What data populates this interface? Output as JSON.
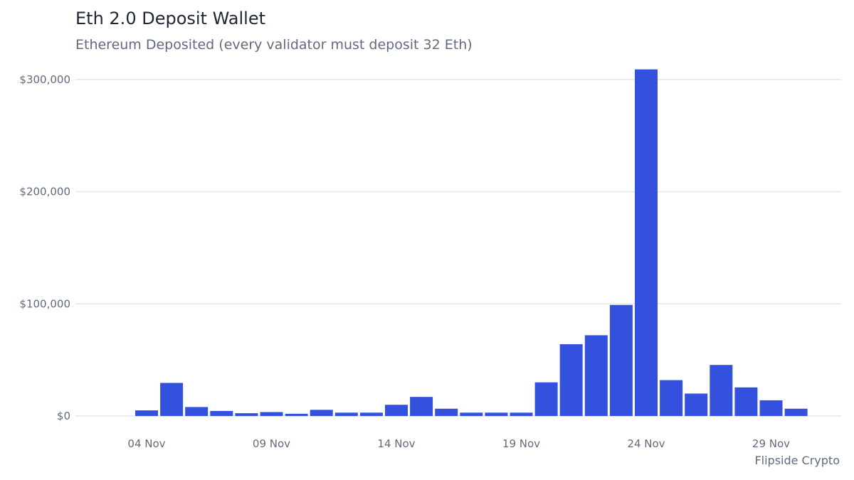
{
  "title": "Eth 2.0 Deposit Wallet",
  "subtitle": "Ethereum Deposited (every validator must deposit 32 Eth)",
  "credit": "Flipside Crypto",
  "colors": {
    "bar": "#3351dc",
    "grid": "#e4e7ef",
    "text": "#5f6b7e",
    "title": "#1f2633"
  },
  "chart_data": {
    "type": "bar",
    "categories": [
      "2020-11-04",
      "2020-11-05",
      "2020-11-06",
      "2020-11-07",
      "2020-11-08",
      "2020-11-09",
      "2020-11-10",
      "2020-11-11",
      "2020-11-12",
      "2020-11-13",
      "2020-11-14",
      "2020-11-15",
      "2020-11-16",
      "2020-11-17",
      "2020-11-18",
      "2020-11-19",
      "2020-11-20",
      "2020-11-21",
      "2020-11-22",
      "2020-11-23",
      "2020-11-24",
      "2020-11-25",
      "2020-11-26",
      "2020-11-27",
      "2020-11-28",
      "2020-11-29",
      "2020-11-30"
    ],
    "values": [
      5000,
      29500,
      8000,
      4500,
      2500,
      3500,
      2000,
      5500,
      3000,
      3000,
      10000,
      17000,
      6500,
      3000,
      3000,
      3000,
      30000,
      64000,
      72000,
      99000,
      309000,
      32000,
      20000,
      45500,
      25500,
      14000,
      6500
    ],
    "x_ticks": [
      "04 Nov",
      "09 Nov",
      "14 Nov",
      "19 Nov",
      "24 Nov",
      "29 Nov"
    ],
    "y_ticks": [
      {
        "value": 0,
        "label": "$0"
      },
      {
        "value": 100000,
        "label": "$100,000"
      },
      {
        "value": 200000,
        "label": "$200,000"
      },
      {
        "value": 300000,
        "label": "$300,000"
      }
    ],
    "ylim": [
      0,
      310000
    ],
    "grid": true
  }
}
